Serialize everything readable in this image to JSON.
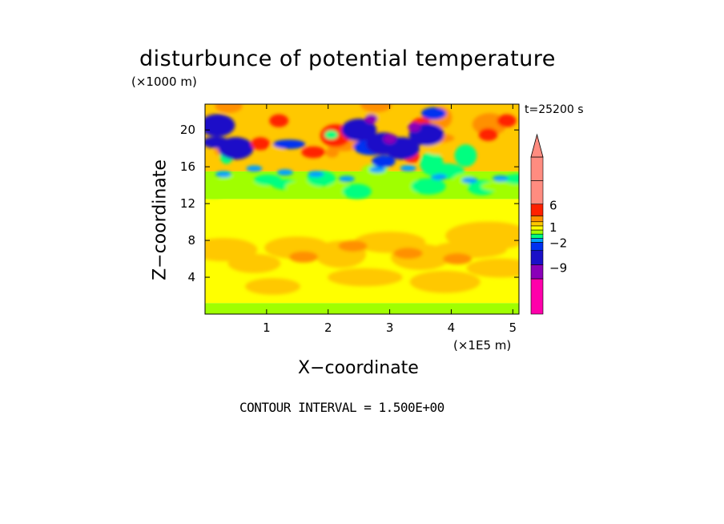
{
  "chart_data": {
    "type": "heatmap",
    "title": "disturbunce of potential temperature",
    "time_label": "t=25200 s",
    "xlabel": "X−coordinate",
    "ylabel": "Z−coordinate",
    "x_unit": "(×1E5 m)",
    "y_unit": "(×1000 m)",
    "x_ticks": [
      "1",
      "2",
      "3",
      "4",
      "5"
    ],
    "x_tick_values": [
      1,
      2,
      3,
      4,
      5
    ],
    "y_ticks": [
      "4",
      "8",
      "12",
      "16",
      "20"
    ],
    "y_tick_values": [
      4,
      8,
      12,
      16,
      20
    ],
    "xlim": [
      0,
      5.1
    ],
    "ylim": [
      0,
      22.8
    ],
    "contour_interval_text": "CONTOUR INTERVAL = 1.500E+00",
    "colorbar": {
      "labels": [
        "6",
        "1",
        "−2",
        "−9"
      ],
      "label_values": [
        6,
        1,
        -2,
        -9
      ],
      "colors": [
        "#ff00aa",
        "#8a00b8",
        "#1a10c8",
        "#0030f0",
        "#00a0ff",
        "#00ff80",
        "#a0ff00",
        "#ffff00",
        "#ffc800",
        "#ff9000",
        "#ff2000",
        "#ff8c80",
        "#ff8c80"
      ]
    }
  }
}
